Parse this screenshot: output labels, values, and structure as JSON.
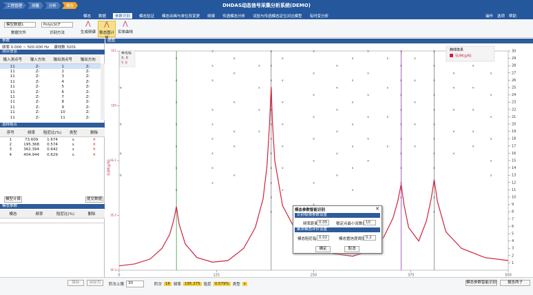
{
  "header": {
    "breadcrumbs": [
      "工程管理",
      "测量",
      "分析",
      "报告"
    ],
    "title": "DHDAS动态信号采集分析系统(DEMO)",
    "menu": [
      "模态",
      "数据",
      "参数识别",
      "模态验证",
      "模态动画与单位改变更",
      "频谱",
      "传函模态分析",
      "试验与传函模态定位对比模型",
      "有时变分析"
    ],
    "active_menu": 2,
    "right": [
      "操作",
      "选项",
      "帮助"
    ]
  },
  "toolbar": {
    "data_file": "模型数据1",
    "method": "PolyLSCF",
    "data_file_label": "数据文件",
    "method_label": "识别方法",
    "buttons": [
      "生成频谱",
      "稳态图计算",
      "实体曲线"
    ],
    "active_button": 1
  },
  "params": {
    "header": "参数",
    "freq_label": "频率",
    "freq_range": "0.000 ~ 500.000 Hz",
    "lines_label": "谱线数",
    "lines": 3201
  },
  "points": {
    "header": "测点信息",
    "columns": [
      "输入测点号",
      "输入方向",
      "输出测点号",
      "输出方向"
    ],
    "rows": [
      [
        11,
        "Z-",
        1,
        "Z-"
      ],
      [
        11,
        "Z-",
        2,
        "Z-"
      ],
      [
        11,
        "Z-",
        3,
        "Z-"
      ],
      [
        11,
        "Z-",
        4,
        "Z-"
      ],
      [
        11,
        "Z-",
        5,
        "Z-"
      ],
      [
        11,
        "Z-",
        6,
        "Z-"
      ],
      [
        11,
        "Z-",
        7,
        "Z-"
      ],
      [
        11,
        "Z-",
        8,
        "Z-"
      ],
      [
        11,
        "Z-",
        9,
        "Z-"
      ],
      [
        11,
        "Z-",
        10,
        "Z-"
      ],
      [
        11,
        "Z-",
        11,
        "Z-"
      ]
    ],
    "selected_row": 0
  },
  "poles": {
    "header": "选择极点",
    "columns": [
      "序号",
      "频率",
      "阻尼比(%)",
      "类型",
      "删除"
    ],
    "rows": [
      [
        1,
        73.609,
        1.674,
        "s"
      ],
      [
        2,
        195.368,
        0.574,
        "s"
      ],
      [
        3,
        362.394,
        0.642,
        "s"
      ],
      [
        4,
        404.944,
        0.629,
        "s"
      ]
    ]
  },
  "buttons": [
    "模型计算",
    "提交数据"
  ],
  "modal": {
    "header": "模态参数",
    "columns": [
      "模态",
      "频率",
      "阻尼比(%)",
      "删除"
    ]
  },
  "chart_data": {
    "type": "line",
    "title": "虚图",
    "ylabel": "SUM(g/N)",
    "log_y": true,
    "x": [
      0,
      20,
      40,
      55,
      65,
      70,
      73.6,
      77,
      85,
      100,
      120,
      140,
      160,
      175,
      185,
      190,
      193,
      195.4,
      197,
      200,
      210,
      225,
      250,
      275,
      300,
      320,
      340,
      352,
      358,
      362.4,
      366,
      372,
      385,
      395,
      401,
      404.9,
      409,
      420,
      440,
      470,
      500
    ],
    "series": [
      {
        "name": "SUM(g/N)",
        "color": "#d0213b",
        "values": [
          0.0012,
          0.0013,
          0.0016,
          0.0025,
          0.0045,
          0.008,
          0.0145,
          0.007,
          0.003,
          0.0017,
          0.0014,
          0.0015,
          0.0025,
          0.006,
          0.02,
          0.08,
          0.4,
          2.2,
          0.5,
          0.1,
          0.015,
          0.006,
          0.003,
          0.002,
          0.0018,
          0.0022,
          0.004,
          0.009,
          0.018,
          0.037,
          0.016,
          0.006,
          0.0034,
          0.008,
          0.02,
          0.045,
          0.018,
          0.005,
          0.0025,
          0.0017,
          0.0015
        ]
      }
    ],
    "xlim": [
      0,
      500
    ],
    "xticks": [
      0,
      125,
      250,
      375,
      500
    ],
    "ylim": [
      0.001,
      10
    ],
    "yticks": [
      {
        "value": 0.001,
        "label": "1E-3"
      },
      {
        "value": 0.01,
        "label": "1E-2"
      },
      {
        "value": 0.1,
        "label": "1E-1"
      },
      {
        "value": 1,
        "label": "1E0"
      },
      {
        "value": 10,
        "label": "1E1"
      }
    ],
    "y2lim": [
      0,
      30
    ],
    "y2ticks": [
      1,
      2,
      3,
      4,
      5,
      6,
      7,
      8,
      9,
      10,
      11,
      12,
      13,
      14,
      15,
      16,
      17,
      18,
      19,
      20,
      21,
      22,
      23,
      24,
      25,
      26,
      27,
      28,
      29,
      30
    ],
    "pole_line_colors": [
      "#3c9a3c",
      "#808080",
      "#9b3fbf",
      "#808080"
    ],
    "stability": [
      {
        "freq": 2,
        "symbol": "o",
        "orders": [
          28,
          25,
          20,
          16,
          13
        ]
      },
      {
        "freq": 73.6,
        "symbol": "s",
        "orders": [
          29,
          26,
          23,
          20,
          17,
          14,
          11
        ]
      },
      {
        "freq": 120,
        "symbol": "s",
        "orders": [
          30,
          28,
          26,
          22,
          20,
          18,
          16,
          14,
          12
        ]
      },
      {
        "freq": 148,
        "symbol": "v",
        "orders": [
          29,
          27,
          23,
          19,
          17,
          13
        ]
      },
      {
        "freq": 180,
        "symbol": "s",
        "orders": [
          28,
          25,
          22,
          19
        ]
      },
      {
        "freq": 195.4,
        "symbol": "s",
        "orders": [
          30,
          28,
          26,
          24,
          22,
          20,
          18,
          16,
          14,
          12,
          10,
          8
        ]
      },
      {
        "freq": 210,
        "symbol": "v",
        "orders": [
          29,
          26,
          23,
          20,
          17,
          14,
          11
        ]
      },
      {
        "freq": 250,
        "symbol": "s",
        "orders": [
          30,
          27,
          24,
          21,
          18,
          15,
          12,
          9
        ]
      },
      {
        "freq": 280,
        "symbol": "v",
        "orders": [
          28,
          25,
          22,
          19,
          16,
          13
        ]
      },
      {
        "freq": 300,
        "symbol": "s",
        "orders": [
          29,
          26,
          23,
          20,
          17,
          14,
          11
        ]
      },
      {
        "freq": 320,
        "symbol": "v",
        "orders": [
          30,
          27,
          24,
          21,
          18,
          15
        ]
      },
      {
        "freq": 345,
        "symbol": "s",
        "orders": [
          29,
          25,
          21,
          17
        ]
      },
      {
        "freq": 362.4,
        "symbol": "s",
        "orders": [
          30,
          28,
          26,
          24,
          22,
          20,
          18,
          16,
          14,
          12,
          10
        ]
      },
      {
        "freq": 380,
        "symbol": "v",
        "orders": [
          29,
          26,
          23,
          20,
          17
        ]
      },
      {
        "freq": 404.9,
        "symbol": "s",
        "orders": [
          30,
          28,
          26,
          24,
          22,
          20,
          18,
          16,
          14,
          12,
          10,
          8
        ]
      },
      {
        "freq": 430,
        "symbol": "v",
        "orders": [
          29,
          27,
          25,
          22,
          19,
          16
        ]
      },
      {
        "freq": 455,
        "symbol": "v",
        "orders": [
          28,
          25,
          22,
          19,
          17
        ]
      },
      {
        "freq": 478,
        "symbol": "s",
        "orders": [
          30,
          27,
          24,
          21,
          18,
          15,
          13
        ]
      }
    ],
    "legend_title": "曲线信息",
    "cursor": [
      "单光标",
      "X: 0",
      "Y: 0"
    ]
  },
  "dialog": {
    "title": "模态参数智能识别",
    "section1": "识别极限参数设置",
    "freq_dist_label": "频率距离",
    "freq_dist": 0.05,
    "min_ratio_label": "稳定点最小双数比",
    "min_ratio": 10,
    "section2": "聚类模态评价设置",
    "damp_label": "模态阻尼指数",
    "damp": 0.02,
    "conf_label": "模态置信度阈值",
    "conf": 0.2,
    "ok": "确定",
    "cancel": "取消"
  },
  "footer": {
    "save": "保存",
    "save_as": "另存为",
    "max_order_label": "阶次上限",
    "max_order": 30,
    "order_label": "阶次",
    "order": 16,
    "freq_label": "频率",
    "freq": 195.375,
    "damp_label": "阻尼",
    "damp": "0.579%",
    "type_label": "类型",
    "type": "s",
    "buttons": [
      "模态参数智能识别",
      "报告两子"
    ]
  }
}
